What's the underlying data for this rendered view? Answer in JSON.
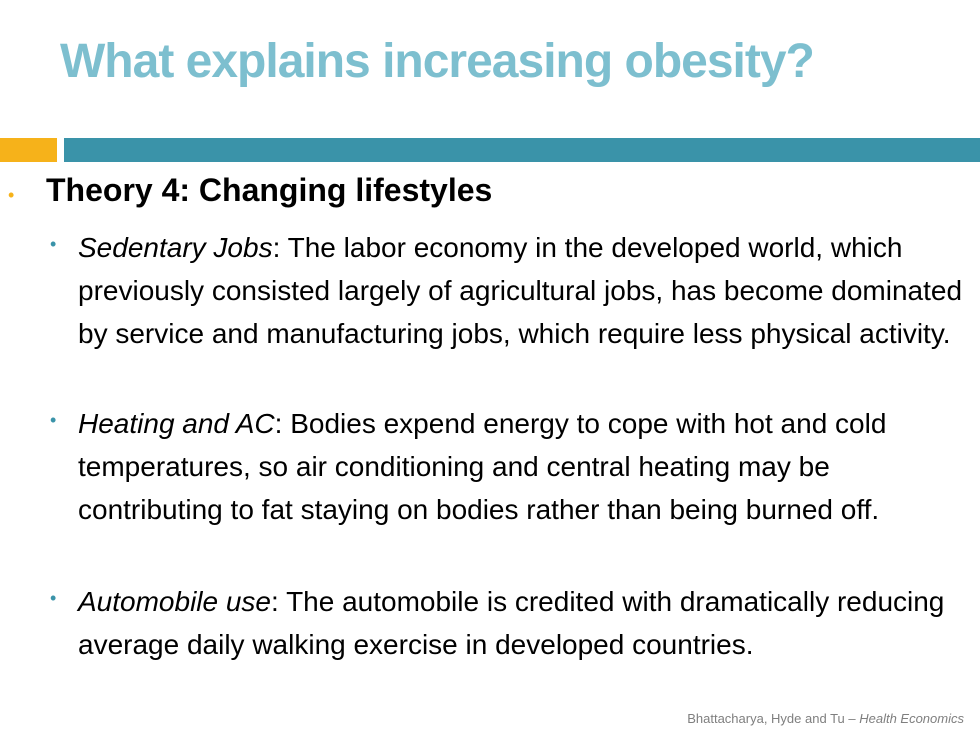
{
  "slide": {
    "title": "What explains increasing obesity?",
    "heading": "Theory 4: Changing lifestyles",
    "bullets": [
      {
        "term": "Sedentary Jobs",
        "text": ": The labor economy in the developed world, which previously consisted largely of agricultural jobs, has become dominated by service and manufacturing jobs, which require less physical activity."
      },
      {
        "term": "Heating and AC",
        "text": ": Bodies expend energy to cope with hot and cold temperatures, so air conditioning and central heating may be contributing to fat staying on bodies rather than being burned off."
      },
      {
        "term": "Automobile use",
        "text": ": The automobile is credited with dramatically reducing average daily walking exercise in developed countries."
      }
    ],
    "footer": {
      "authors": "Bhattacharya, Hyde and Tu – ",
      "book": "Health Economics"
    }
  },
  "colors": {
    "title": "#7dbfcf",
    "accent_orange": "#f6b21a",
    "accent_teal": "#3a93a9"
  }
}
